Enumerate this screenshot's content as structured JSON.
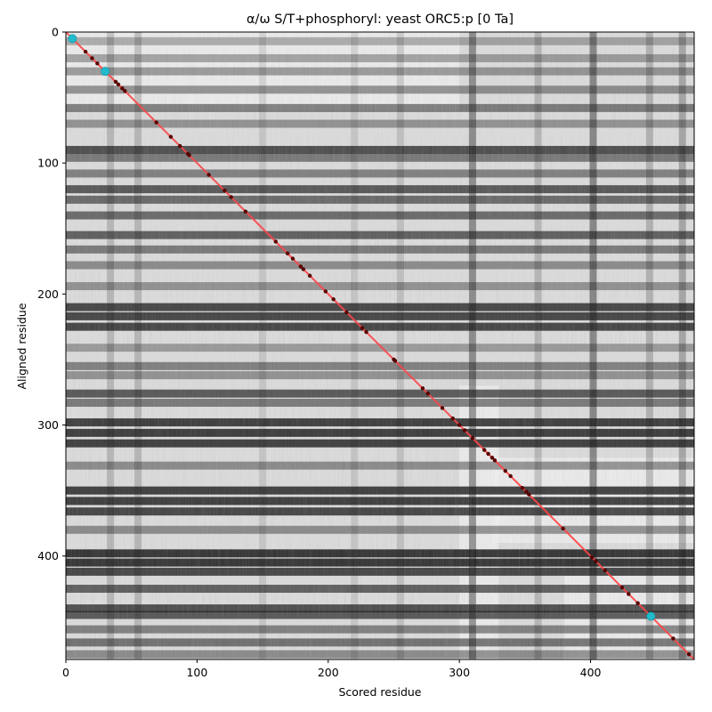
{
  "chart_data": {
    "type": "heatmap",
    "title": "α/ω S/T+phosphoryl: yeast ORC5:p [0 Ta]",
    "xlabel": "Scored residue",
    "ylabel": "Aligned residue",
    "xlim": [
      0,
      479
    ],
    "ylim": [
      479,
      0
    ],
    "x_ticks": [
      0,
      100,
      200,
      300,
      400
    ],
    "y_ticks": [
      0,
      100,
      200,
      300,
      400
    ],
    "colormap": "gray",
    "background_color": "#dcdcdc",
    "diagonal_line": {
      "from": [
        0,
        0
      ],
      "to": [
        479,
        479
      ],
      "color": "#ff4444"
    },
    "dark_horizontal_bands": [
      [
        7,
        0.35
      ],
      [
        20,
        0.4
      ],
      [
        30,
        0.45
      ],
      [
        44,
        0.5
      ],
      [
        58,
        0.6
      ],
      [
        70,
        0.45
      ],
      [
        90,
        0.85
      ],
      [
        96,
        0.6
      ],
      [
        108,
        0.55
      ],
      [
        120,
        0.8
      ],
      [
        128,
        0.7
      ],
      [
        140,
        0.7
      ],
      [
        155,
        0.75
      ],
      [
        166,
        0.6
      ],
      [
        178,
        0.5
      ],
      [
        194,
        0.45
      ],
      [
        210,
        0.9
      ],
      [
        217,
        0.9
      ],
      [
        225,
        0.9
      ],
      [
        241,
        0.4
      ],
      [
        255,
        0.55
      ],
      [
        262,
        0.45
      ],
      [
        276,
        0.8
      ],
      [
        283,
        0.6
      ],
      [
        298,
        0.95
      ],
      [
        306,
        0.97
      ],
      [
        314,
        0.95
      ],
      [
        331,
        0.5
      ],
      [
        350,
        0.95
      ],
      [
        358,
        0.95
      ],
      [
        366,
        0.9
      ],
      [
        380,
        0.5
      ],
      [
        398,
        1.0
      ],
      [
        405,
        1.0
      ],
      [
        412,
        0.9
      ],
      [
        425,
        0.75
      ],
      [
        440,
        0.85
      ],
      [
        445,
        0.8
      ],
      [
        456,
        0.55
      ],
      [
        466,
        0.65
      ],
      [
        475,
        0.5
      ]
    ],
    "dark_vertical_bands": [
      [
        310,
        0.75
      ],
      [
        402,
        0.8
      ],
      [
        470,
        0.5
      ],
      [
        34,
        0.35
      ],
      [
        55,
        0.35
      ],
      [
        150,
        0.2
      ],
      [
        220,
        0.2
      ],
      [
        255,
        0.25
      ],
      [
        360,
        0.35
      ],
      [
        445,
        0.4
      ]
    ],
    "light_regions": [
      [
        325,
        325,
        479,
        390
      ],
      [
        380,
        415,
        479,
        479
      ],
      [
        300,
        270,
        330,
        479
      ],
      [
        0,
        0,
        300,
        60
      ]
    ],
    "points": {
      "name": "matched residues",
      "color": "#550000",
      "x": [
        5,
        15,
        20,
        24,
        29,
        38,
        40,
        43,
        45,
        69,
        80,
        87,
        93,
        94,
        109,
        121,
        126,
        137,
        160,
        169,
        173,
        179,
        181,
        186,
        198,
        204,
        214,
        226,
        229,
        250,
        251,
        272,
        276,
        287,
        295,
        300,
        304,
        310,
        319,
        322,
        325,
        327,
        335,
        339,
        348,
        351,
        353,
        379,
        401,
        404,
        411,
        424,
        429,
        436,
        446,
        463,
        475
      ],
      "y": [
        5,
        15,
        20,
        24,
        29,
        38,
        40,
        43,
        45,
        69,
        80,
        87,
        93,
        94,
        109,
        121,
        126,
        137,
        160,
        169,
        173,
        179,
        181,
        186,
        198,
        204,
        214,
        226,
        229,
        250,
        251,
        272,
        276,
        287,
        295,
        300,
        304,
        310,
        319,
        322,
        325,
        327,
        335,
        339,
        348,
        351,
        353,
        379,
        401,
        404,
        411,
        424,
        429,
        436,
        446,
        463,
        475
      ]
    },
    "highlights": {
      "name": "highlighted residues",
      "color": "#22bbcc",
      "x": [
        5,
        30,
        446
      ],
      "y": [
        5,
        30,
        446
      ]
    }
  }
}
